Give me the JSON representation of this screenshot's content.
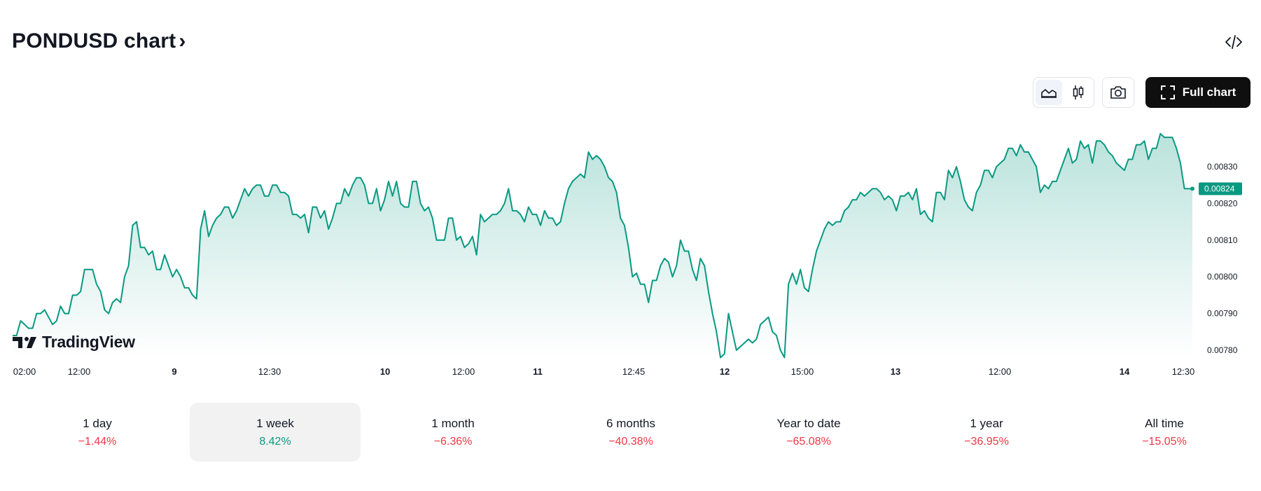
{
  "header": {
    "title": "PONDUSD chart",
    "title_chevron": "›"
  },
  "toolbar": {
    "embed_icon": "code-embed-icon",
    "chart_type_area_icon": "area-chart-icon",
    "chart_type_candles_icon": "candles-icon",
    "snapshot_icon": "camera-icon",
    "full_chart_label": "Full chart",
    "full_chart_icon": "fullscreen-icon"
  },
  "branding": {
    "logo_text": "TradingView"
  },
  "colors": {
    "line": "#089981",
    "last_price_bg": "#089981",
    "negative": "#f23645",
    "positive": "#089981"
  },
  "chart_data": {
    "type": "area",
    "symbol": "PONDUSD",
    "ylim": [
      0.00778,
      0.00838
    ],
    "y_ticks": [
      "0.00830",
      "0.00820",
      "0.00810",
      "0.00800",
      "0.00790",
      "0.00780"
    ],
    "x_ticks": [
      {
        "label": "02:00",
        "bold": false
      },
      {
        "label": "12:00",
        "bold": false
      },
      {
        "label": "9",
        "bold": true
      },
      {
        "label": "12:30",
        "bold": false
      },
      {
        "label": "10",
        "bold": true
      },
      {
        "label": "12:00",
        "bold": false
      },
      {
        "label": "11",
        "bold": true
      },
      {
        "label": "12:45",
        "bold": false
      },
      {
        "label": "12",
        "bold": true
      },
      {
        "label": "15:00",
        "bold": false
      },
      {
        "label": "13",
        "bold": true
      },
      {
        "label": "12:00",
        "bold": false
      },
      {
        "label": "14",
        "bold": true
      },
      {
        "label": "12:30",
        "bold": false
      }
    ],
    "last_price": "0.00824",
    "values": [
      0.00784,
      0.00784,
      0.00788,
      0.00787,
      0.00786,
      0.00786,
      0.0079,
      0.0079,
      0.00791,
      0.00789,
      0.00787,
      0.00788,
      0.00792,
      0.0079,
      0.0079,
      0.00795,
      0.00795,
      0.00796,
      0.00802,
      0.00802,
      0.00802,
      0.00798,
      0.00796,
      0.00791,
      0.0079,
      0.00793,
      0.00794,
      0.00793,
      0.008,
      0.00803,
      0.00814,
      0.00815,
      0.00808,
      0.00808,
      0.00806,
      0.00807,
      0.00802,
      0.00802,
      0.00806,
      0.00803,
      0.008,
      0.00802,
      0.008,
      0.00797,
      0.00797,
      0.00795,
      0.00794,
      0.00813,
      0.00818,
      0.00811,
      0.00814,
      0.00816,
      0.00817,
      0.00819,
      0.00819,
      0.00816,
      0.00818,
      0.00821,
      0.00824,
      0.00822,
      0.00824,
      0.00825,
      0.00825,
      0.00822,
      0.00822,
      0.00825,
      0.00825,
      0.00823,
      0.00823,
      0.00822,
      0.00817,
      0.00817,
      0.00816,
      0.00817,
      0.00812,
      0.00819,
      0.00819,
      0.00816,
      0.00818,
      0.00813,
      0.00816,
      0.0082,
      0.0082,
      0.00824,
      0.00822,
      0.00825,
      0.00827,
      0.00827,
      0.00825,
      0.0082,
      0.0082,
      0.00824,
      0.00818,
      0.00821,
      0.00826,
      0.00822,
      0.00826,
      0.0082,
      0.00819,
      0.00819,
      0.00826,
      0.00826,
      0.0082,
      0.00818,
      0.00819,
      0.00816,
      0.0081,
      0.0081,
      0.0081,
      0.00816,
      0.00816,
      0.0081,
      0.00811,
      0.00808,
      0.00809,
      0.00811,
      0.00806,
      0.00817,
      0.00815,
      0.00816,
      0.00817,
      0.00817,
      0.00818,
      0.0082,
      0.00824,
      0.00818,
      0.00818,
      0.00817,
      0.00815,
      0.00819,
      0.00817,
      0.00817,
      0.00814,
      0.00818,
      0.00816,
      0.00816,
      0.00814,
      0.00815,
      0.0082,
      0.00824,
      0.00826,
      0.00827,
      0.00828,
      0.00827,
      0.00834,
      0.00832,
      0.00833,
      0.00832,
      0.0083,
      0.00827,
      0.00826,
      0.00823,
      0.00816,
      0.00814,
      0.00808,
      0.008,
      0.00801,
      0.00798,
      0.00798,
      0.00793,
      0.00799,
      0.00799,
      0.00803,
      0.00805,
      0.00804,
      0.008,
      0.00803,
      0.0081,
      0.00807,
      0.00807,
      0.00802,
      0.00799,
      0.00805,
      0.00803,
      0.00796,
      0.0079,
      0.00785,
      0.00778,
      0.00779,
      0.0079,
      0.00785,
      0.0078,
      0.00781,
      0.00782,
      0.00783,
      0.00782,
      0.00783,
      0.00787,
      0.00788,
      0.00789,
      0.00785,
      0.00784,
      0.0078,
      0.00778,
      0.00798,
      0.00801,
      0.00798,
      0.00802,
      0.00797,
      0.00796,
      0.00802,
      0.00807,
      0.0081,
      0.00813,
      0.00815,
      0.00814,
      0.00815,
      0.00815,
      0.00818,
      0.00819,
      0.00821,
      0.00821,
      0.00823,
      0.00822,
      0.00823,
      0.00824,
      0.00824,
      0.00823,
      0.00821,
      0.00822,
      0.00821,
      0.00818,
      0.00822,
      0.00822,
      0.00823,
      0.00821,
      0.00824,
      0.00817,
      0.00818,
      0.00816,
      0.00815,
      0.00823,
      0.00823,
      0.00821,
      0.00829,
      0.00827,
      0.0083,
      0.00826,
      0.00821,
      0.00819,
      0.00818,
      0.00823,
      0.00825,
      0.00829,
      0.00829,
      0.00827,
      0.0083,
      0.00831,
      0.00832,
      0.00835,
      0.00835,
      0.00833,
      0.00836,
      0.00834,
      0.00834,
      0.00832,
      0.0083,
      0.00823,
      0.00825,
      0.00824,
      0.00826,
      0.00826,
      0.00829,
      0.00832,
      0.00835,
      0.00831,
      0.00832,
      0.00837,
      0.00835,
      0.00836,
      0.00831,
      0.00837,
      0.00837,
      0.00836,
      0.00834,
      0.00833,
      0.00831,
      0.0083,
      0.00829,
      0.00832,
      0.00832,
      0.00836,
      0.00836,
      0.00837,
      0.00832,
      0.00835,
      0.00835,
      0.00839,
      0.00838,
      0.00838,
      0.00838,
      0.00835,
      0.00831,
      0.00824,
      0.00824,
      0.00824
    ]
  },
  "periods": [
    {
      "label": "1 day",
      "change": "−1.44%",
      "dir": "neg"
    },
    {
      "label": "1 week",
      "change": "8.42%",
      "dir": "pos",
      "active": true
    },
    {
      "label": "1 month",
      "change": "−6.36%",
      "dir": "neg"
    },
    {
      "label": "6 months",
      "change": "−40.38%",
      "dir": "neg"
    },
    {
      "label": "Year to date",
      "change": "−65.08%",
      "dir": "neg"
    },
    {
      "label": "1 year",
      "change": "−36.95%",
      "dir": "neg"
    },
    {
      "label": "All time",
      "change": "−15.05%",
      "dir": "neg"
    }
  ]
}
